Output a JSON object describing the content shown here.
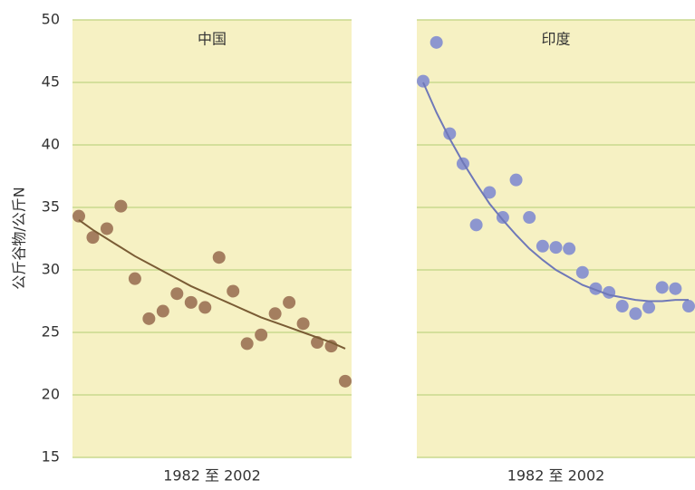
{
  "chart_data": {
    "type": "scatter",
    "ylabel": "公斤谷物/公斤N",
    "ylim": [
      15,
      50
    ],
    "yticks": [
      15,
      20,
      25,
      30,
      35,
      40,
      45,
      50
    ],
    "grid": true,
    "panels": [
      {
        "title": "中国",
        "xlabel": "1982 至 2002",
        "series": [
          {
            "kind": "scatter",
            "color": "#a47e5f",
            "values": [
              34.3,
              32.6,
              33.3,
              35.1,
              29.3,
              26.1,
              26.7,
              28.1,
              27.4,
              27.0,
              31.0,
              28.3,
              24.1,
              24.8,
              26.5,
              27.4,
              25.7,
              24.2,
              23.9,
              21.1
            ]
          },
          {
            "kind": "line",
            "color": "#7a5c35",
            "values": [
              34.0,
              33.2,
              32.5,
              31.8,
              31.1,
              30.5,
              29.9,
              29.3,
              28.7,
              28.2,
              27.7,
              27.2,
              26.7,
              26.2,
              25.8,
              25.4,
              25.0,
              24.6,
              24.2,
              23.7
            ]
          }
        ]
      },
      {
        "title": "印度",
        "xlabel": "1982 至 2002",
        "series": [
          {
            "kind": "scatter",
            "color": "#8d96cf",
            "values": [
              45.1,
              48.2,
              40.9,
              38.5,
              33.6,
              36.2,
              34.2,
              37.2,
              34.2,
              31.9,
              31.8,
              31.7,
              29.8,
              28.5,
              28.2,
              27.1,
              26.5,
              27.0,
              28.6,
              28.5,
              27.1
            ]
          },
          {
            "kind": "line",
            "color": "#6f78b8",
            "values": [
              45.0,
              42.6,
              40.5,
              38.6,
              36.9,
              35.3,
              34.0,
              32.8,
              31.7,
              30.8,
              30.0,
              29.4,
              28.8,
              28.4,
              28.0,
              27.8,
              27.6,
              27.5,
              27.5,
              27.6,
              27.6
            ]
          }
        ]
      }
    ]
  }
}
